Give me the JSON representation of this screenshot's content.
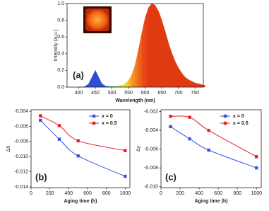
{
  "chart_data": [
    {
      "type": "spectrum",
      "annotation": "(a)",
      "xlabel": "Wavelength (nm)",
      "ylabel": "Intensity (a.u.)",
      "x": [
        400,
        410,
        420,
        430,
        440,
        450,
        460,
        470,
        480,
        490,
        500,
        510,
        520,
        530,
        540,
        550,
        560,
        570,
        580,
        590,
        600,
        610,
        620,
        630,
        640,
        650,
        660,
        670,
        680,
        690,
        700,
        710,
        720,
        730,
        740,
        750,
        760,
        770,
        780
      ],
      "values": [
        0,
        0,
        0.01,
        0.04,
        0.12,
        0.2,
        0.12,
        0.04,
        0.015,
        0.01,
        0.01,
        0.01,
        0.015,
        0.02,
        0.04,
        0.08,
        0.15,
        0.27,
        0.45,
        0.65,
        0.83,
        0.95,
        1.0,
        0.98,
        0.91,
        0.8,
        0.67,
        0.53,
        0.41,
        0.31,
        0.23,
        0.17,
        0.12,
        0.09,
        0.07,
        0.05,
        0.04,
        0.03,
        0.02
      ],
      "colors": [
        "#2a4fd0",
        "#2a4fd0",
        "#2a4fd0",
        "#2a4fd0",
        "#2a4fd0",
        "#2a4fd0",
        "#2a4fd0",
        "#2a4fd0",
        "#3a8fd0",
        "#55b0b0",
        "#77c070",
        "#99cc55",
        "#c8d840",
        "#e8e040",
        "#f0d030",
        "#f4b028",
        "#f49020",
        "#f07820",
        "#ec6018",
        "#e84c15",
        "#e44012",
        "#e03a10",
        "#e03a10",
        "#e03a10",
        "#e03a10",
        "#e03a10",
        "#e03a10",
        "#e03a10",
        "#e03a10",
        "#e03a10",
        "#e03a10",
        "#e03a10",
        "#e03a10",
        "#e03a10",
        "#e03a10",
        "#e03a10",
        "#e03a10",
        "#e03a10",
        "#e03a10"
      ],
      "xlim": [
        365,
        775
      ],
      "xticks": [
        400,
        450,
        500,
        550,
        600,
        650,
        700,
        750
      ],
      "ylim": [
        0,
        1.0
      ],
      "yticks": [
        {
          "value": 0,
          "label": "0.0"
        },
        0.2,
        0.4,
        0.6,
        0.8,
        {
          "value": 1.0,
          "label": "1.0"
        }
      ]
    },
    {
      "type": "line",
      "annotation": "(b)",
      "xlabel": "Aging time (h)",
      "ylabel": "ΔX",
      "legend": "upper right",
      "marker": "square",
      "x": [
        100,
        300,
        500,
        1000
      ],
      "series": [
        {
          "name": "x = 0",
          "color": "#3355dd",
          "values": [
            -0.0052,
            -0.0077,
            -0.0099,
            -0.0126
          ]
        },
        {
          "name": "x = 0.5",
          "color": "#e02030",
          "values": [
            -0.0046,
            -0.0059,
            -0.0079,
            -0.0092
          ]
        }
      ],
      "xlim": [
        0,
        1050
      ],
      "xticks": [
        0,
        200,
        400,
        600,
        800,
        1000
      ],
      "ylim": [
        -0.0141,
        -0.0038
      ],
      "yticks": [
        -0.004,
        -0.006,
        -0.008,
        {
          "value": -0.01,
          "label": "-0.010"
        },
        -0.012,
        -0.014
      ]
    },
    {
      "type": "line",
      "annotation": "(c)",
      "xlabel": "Aging time (h)",
      "ylabel": "Δy",
      "legend": "upper right",
      "marker": "square",
      "x": [
        100,
        300,
        500,
        1000
      ],
      "series": [
        {
          "name": "x = 0",
          "color": "#3355dd",
          "values": [
            -0.0036,
            -0.0049,
            -0.0061,
            -0.008
          ]
        },
        {
          "name": "x = 0.5",
          "color": "#e02030",
          "values": [
            -0.0025,
            -0.0026,
            -0.004,
            -0.0068
          ]
        }
      ],
      "xlim": [
        0,
        1050
      ],
      "xticks": [
        0,
        200,
        400,
        600,
        800,
        1000
      ],
      "ylim": [
        -0.0101,
        -0.0018
      ],
      "yticks": [
        -0.002,
        -0.004,
        -0.006,
        -0.008,
        {
          "value": -0.01,
          "label": "-0.010"
        }
      ]
    }
  ]
}
